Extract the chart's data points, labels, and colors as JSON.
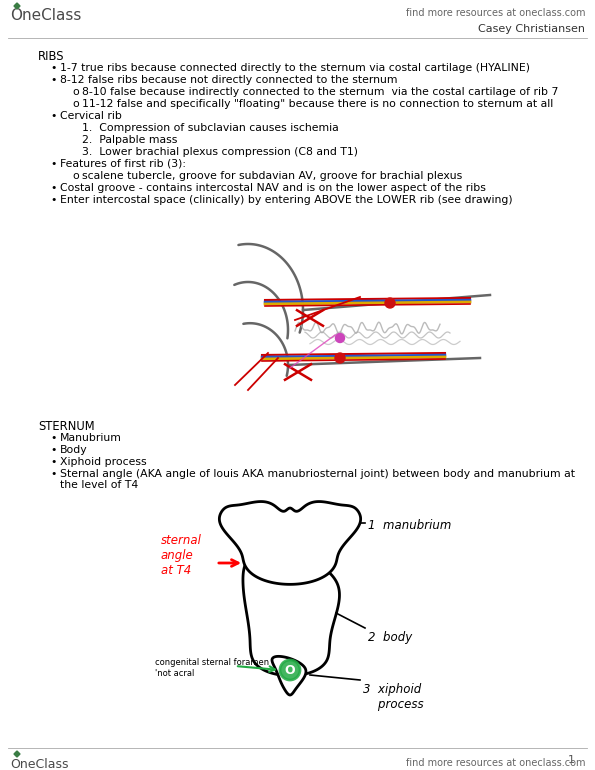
{
  "background": "#ffffff",
  "header_text": "find more resources at oneclass.com",
  "author": "Casey Christiansen",
  "footer_text": "find more resources at oneclass.com",
  "page_num": "1",
  "ribs_heading": "RIBS",
  "ribs_bullets": [
    "1-7 true ribs because connected directly to the sternum via costal cartilage (HYALINE)",
    "8-12 false ribs because not directly connected to the sternum",
    "Cervical rib",
    "Features of first rib (3):",
    "Costal groove - contains intercostal NAV and is on the lower aspect of the ribs",
    "Enter intercostal space (clinically) by entering ABOVE the LOWER rib (see drawing)"
  ],
  "sub_o_2": [
    "8-10 false because indirectly connected to the sternum  via the costal cartilage of rib 7",
    "11-12 false and specifically \"floating\" because there is no connection to sternum at all"
  ],
  "numbered_3": [
    "1.  Compression of subclavian causes ischemia",
    "2.  Palpable mass",
    "3.  Lower brachial plexus compression (C8 and T1)"
  ],
  "sub_o_4": "scalene tubercle, groove for subdavian AV, groove for brachial plexus",
  "sternum_heading": "STERNUM",
  "sternum_bullets": [
    "Manubrium",
    "Body",
    "Xiphoid process",
    "Sternal angle (AKA angle of louis AKA manubriosternal joint) between body and manubrium at",
    "the level of T4"
  ]
}
